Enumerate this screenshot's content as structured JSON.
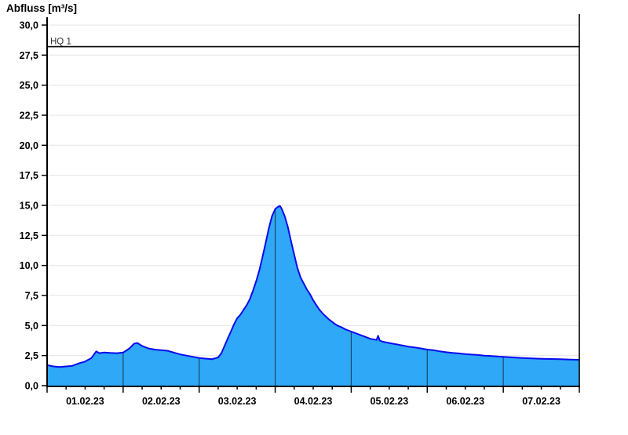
{
  "title": "Abfluss [m³/s]",
  "chart_data": {
    "type": "area",
    "title": "Abfluss [m³/s]",
    "ylabel": "Abfluss [m³/s]",
    "xlabel": "",
    "x_unit": "hours since 01.02.23 00:00",
    "xlim_hours": [
      0,
      168
    ],
    "ylim": [
      0,
      30
    ],
    "y_tick_step": 2.5,
    "y_tick_labels": [
      "0,0",
      "2,5",
      "5,0",
      "7,5",
      "10,0",
      "12,5",
      "15,0",
      "17,5",
      "20,0",
      "22,5",
      "25,0",
      "27,5",
      "30,0"
    ],
    "x_day_labels": [
      "01.02.23",
      "02.02.23",
      "03.02.23",
      "04.02.23",
      "05.02.23",
      "06.02.23",
      "07.02.23"
    ],
    "minor_tick_hours": 6,
    "grid": "horizontal-light",
    "legend": "none",
    "reference_line": {
      "label": "HQ 1",
      "value": 28.2
    },
    "series_name": "Abfluss",
    "x": [
      0,
      2,
      4,
      6,
      8,
      10,
      12,
      14,
      15.5,
      16.5,
      18,
      20,
      22,
      24,
      26,
      27.5,
      28.5,
      30,
      32,
      34,
      36,
      38,
      40,
      42,
      44,
      46,
      48,
      50,
      52,
      54,
      55,
      56,
      57,
      58,
      59,
      60,
      61,
      62,
      63,
      64,
      65,
      66,
      67,
      68,
      69,
      70,
      71,
      72,
      73,
      73.5,
      74,
      75,
      76,
      77,
      78,
      79,
      80,
      81,
      82,
      83,
      84,
      85,
      86,
      87,
      88,
      89,
      90,
      91,
      92,
      93,
      94,
      95,
      96,
      98,
      100,
      102,
      104,
      104.5,
      105,
      106,
      108,
      110,
      112,
      114,
      116,
      118,
      120,
      122,
      124,
      126,
      128,
      130,
      132,
      134,
      136,
      138,
      140,
      142,
      144,
      147,
      150,
      153,
      156,
      159,
      162,
      165,
      168
    ],
    "values": [
      1.7,
      1.6,
      1.55,
      1.6,
      1.65,
      1.85,
      2.0,
      2.3,
      2.85,
      2.7,
      2.75,
      2.72,
      2.7,
      2.75,
      3.1,
      3.5,
      3.55,
      3.3,
      3.1,
      3.0,
      2.95,
      2.9,
      2.75,
      2.6,
      2.5,
      2.4,
      2.3,
      2.25,
      2.2,
      2.35,
      2.7,
      3.3,
      3.9,
      4.5,
      5.1,
      5.6,
      5.9,
      6.3,
      6.7,
      7.2,
      7.9,
      8.7,
      9.6,
      10.7,
      11.9,
      13.1,
      14.1,
      14.7,
      14.9,
      14.95,
      14.75,
      14.1,
      13.2,
      12.0,
      10.9,
      9.8,
      9.0,
      8.5,
      8.0,
      7.6,
      7.1,
      6.7,
      6.3,
      6.0,
      5.75,
      5.5,
      5.3,
      5.1,
      4.95,
      4.85,
      4.7,
      4.6,
      4.5,
      4.3,
      4.1,
      3.9,
      3.8,
      4.15,
      3.75,
      3.65,
      3.55,
      3.45,
      3.35,
      3.25,
      3.18,
      3.1,
      3.0,
      2.95,
      2.85,
      2.78,
      2.72,
      2.68,
      2.62,
      2.58,
      2.55,
      2.5,
      2.47,
      2.43,
      2.4,
      2.35,
      2.3,
      2.27,
      2.24,
      2.22,
      2.2,
      2.17,
      2.15
    ],
    "colors": {
      "fill": "#2EA8F7",
      "line": "#0A0AEE",
      "grid": "#EBEBEB",
      "day_line": "#1D4863",
      "axis": "#000000",
      "reference_line": "#000000"
    }
  }
}
